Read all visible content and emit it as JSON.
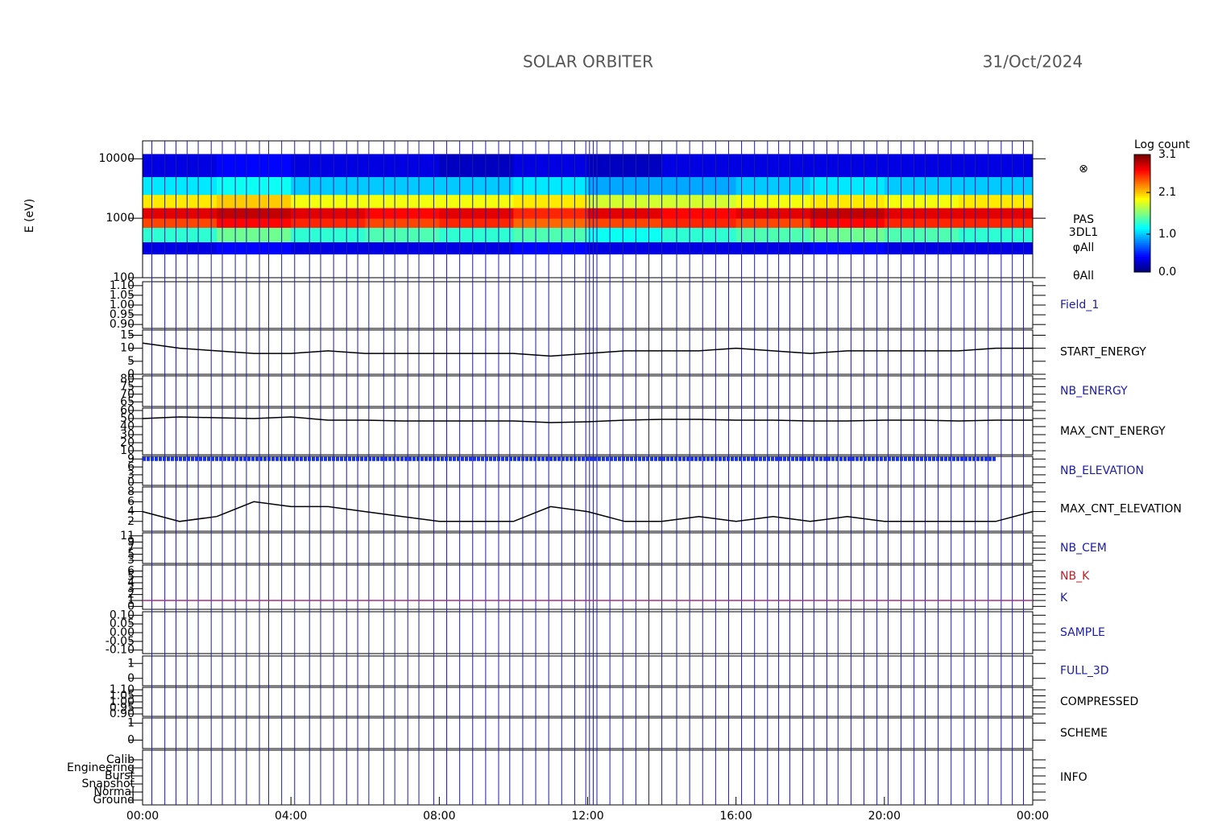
{
  "title": "SOLAR ORBITER",
  "date": "31/Oct/2024",
  "time_axis": {
    "xlim": [
      0,
      24
    ],
    "xticks": [
      {
        "value": 0,
        "label": "00:00"
      },
      {
        "value": 4,
        "label": "04:00"
      },
      {
        "value": 8,
        "label": "08:00"
      },
      {
        "value": 12,
        "label": "12:00"
      },
      {
        "value": 16,
        "label": "16:00"
      },
      {
        "value": 20,
        "label": "20:00"
      },
      {
        "value": 24,
        "label": "00:00"
      }
    ]
  },
  "event_lines": {
    "color": "#1c1ca8",
    "times": [
      0.25,
      0.6,
      0.9,
      1.2,
      1.5,
      1.85,
      2.15,
      2.5,
      2.8,
      3.15,
      3.4,
      3.75,
      4.1,
      4.5,
      4.8,
      5.15,
      5.5,
      5.8,
      6.1,
      6.5,
      6.8,
      7.15,
      7.45,
      7.85,
      8.2,
      8.55,
      8.9,
      9.25,
      9.6,
      9.9,
      10.25,
      10.6,
      10.95,
      11.3,
      11.65,
      11.95,
      12.05,
      12.15,
      12.25,
      12.6,
      12.95,
      13.3,
      13.65,
      14.0,
      14.4,
      14.75,
      15.1,
      15.45,
      15.8,
      16.15,
      16.5,
      16.85,
      17.15,
      17.45,
      17.8,
      18.1,
      18.45,
      18.75,
      19.1,
      19.45,
      19.8,
      20.1,
      20.45,
      20.8,
      21.1,
      21.45,
      21.8,
      22.15,
      22.45,
      22.8,
      23.15,
      23.45,
      23.75
    ]
  },
  "chart_data": [
    {
      "type": "heatmap",
      "ylabel": "E (eV)",
      "log": true,
      "ylim": [
        100,
        20000
      ],
      "yticks": [
        100,
        1000,
        10000
      ],
      "labels": [
        "⊗",
        "PAS",
        "3DL1",
        "φAll",
        "θAll"
      ],
      "label_colors": [
        "#000",
        "#000",
        "#000",
        "#000",
        "#000"
      ],
      "x_edges": [
        0,
        2,
        4,
        6,
        8,
        10,
        12,
        14,
        16,
        18,
        20,
        22,
        24
      ],
      "y_edges": [
        250,
        400,
        700,
        1000,
        1500,
        2500,
        5000,
        12000
      ],
      "values": [
        [
          0.3,
          1.3,
          2.5,
          2.8,
          2.0,
          1.1,
          0.3
        ],
        [
          0.4,
          1.5,
          2.7,
          2.9,
          2.1,
          1.2,
          0.4
        ],
        [
          0.3,
          1.3,
          2.6,
          2.8,
          1.9,
          1.0,
          0.3
        ],
        [
          0.3,
          1.4,
          2.5,
          2.7,
          1.9,
          1.0,
          0.3
        ],
        [
          0.3,
          1.3,
          2.6,
          2.8,
          1.9,
          1.0,
          0.2
        ],
        [
          0.4,
          1.4,
          2.4,
          2.6,
          2.0,
          1.1,
          0.3
        ],
        [
          0.3,
          1.2,
          2.5,
          2.8,
          1.8,
          0.9,
          0.2
        ],
        [
          0.3,
          1.3,
          2.6,
          2.7,
          1.8,
          0.9,
          0.3
        ],
        [
          0.3,
          1.4,
          2.5,
          2.8,
          1.9,
          1.0,
          0.3
        ],
        [
          0.4,
          1.5,
          2.7,
          2.9,
          2.0,
          1.1,
          0.3
        ],
        [
          0.3,
          1.4,
          2.6,
          2.8,
          1.9,
          1.0,
          0.3
        ],
        [
          0.3,
          1.3,
          2.6,
          2.8,
          2.0,
          1.0,
          0.3
        ]
      ],
      "colorbar_title": "Log count",
      "zlim": [
        0,
        3.1
      ],
      "zticks": [
        {
          "value": 0,
          "label": "0.0"
        },
        {
          "value": 1,
          "label": "1.0"
        },
        2.1,
        3.1
      ]
    },
    {
      "type": "line",
      "labels": [
        "Field_1"
      ],
      "label_colors": [
        "#1c1ca8"
      ],
      "ylim": [
        0.88,
        1.12
      ],
      "yticks": [
        {
          "value": 0.9,
          "label": "0.90"
        },
        {
          "value": 0.95,
          "label": "0.95"
        },
        {
          "value": 1,
          "label": "1.00"
        },
        {
          "value": 1.05,
          "label": "1.05"
        },
        {
          "value": 1.1,
          "label": "1.10"
        }
      ]
    },
    {
      "type": "line",
      "labels": [
        "START_ENERGY"
      ],
      "label_colors": [
        "#000"
      ],
      "ylim": [
        0,
        17
      ],
      "yticks": [
        0,
        5,
        10,
        15
      ],
      "x": [
        0,
        1,
        2,
        3,
        4,
        5,
        6,
        7,
        8,
        9,
        10,
        11,
        12,
        13,
        14,
        15,
        16,
        17,
        18,
        19,
        20,
        21,
        22,
        23,
        24
      ],
      "series": [
        {
          "color": "#000",
          "values": [
            12,
            10,
            9,
            8,
            8,
            9,
            8,
            8,
            8,
            8,
            8,
            7,
            8,
            9,
            9,
            9,
            10,
            9,
            8,
            9,
            9,
            9,
            9,
            10,
            10
          ]
        }
      ]
    },
    {
      "type": "line",
      "labels": [
        "NB_ENERGY"
      ],
      "label_colors": [
        "#1c1ca8"
      ],
      "ylim": [
        62,
        82
      ],
      "yticks": [
        65,
        70,
        75,
        80
      ]
    },
    {
      "type": "line",
      "labels": [
        "MAX_CNT_ENERGY"
      ],
      "label_colors": [
        "#000"
      ],
      "ylim": [
        5,
        63
      ],
      "yticks": [
        10,
        20,
        30,
        40,
        50,
        60
      ],
      "x": [
        0,
        1,
        2,
        3,
        4,
        5,
        6,
        7,
        8,
        9,
        10,
        11,
        12,
        13,
        14,
        15,
        16,
        17,
        18,
        19,
        20,
        21,
        22,
        23,
        24
      ],
      "series": [
        {
          "color": "#000",
          "values": [
            50,
            52,
            51,
            50,
            52,
            48,
            48,
            47,
            47,
            47,
            47,
            45,
            46,
            48,
            49,
            49,
            48,
            48,
            47,
            47,
            48,
            48,
            47,
            48,
            48
          ]
        }
      ]
    },
    {
      "type": "line",
      "labels": [
        "NB_ELEVATION"
      ],
      "label_colors": [
        "#1c1ca8"
      ],
      "ylim": [
        -1,
        10
      ],
      "yticks": [
        0,
        3,
        6,
        9
      ],
      "x": [
        0,
        1,
        2,
        3,
        4,
        5,
        6,
        7,
        8,
        9,
        10,
        11,
        12,
        13,
        14,
        15,
        16,
        17,
        18,
        19,
        20,
        21,
        22,
        23,
        24
      ],
      "series": [
        {
          "color": "#1530e8",
          "line_width": 5,
          "values": [
            9,
            9,
            9,
            9,
            9,
            9,
            9,
            9,
            9,
            9,
            9,
            9,
            9,
            9,
            9,
            9,
            9,
            9,
            9,
            9,
            9,
            9,
            9,
            9,
            null
          ]
        }
      ]
    },
    {
      "type": "line",
      "labels": [
        "MAX_CNT_ELEVATION"
      ],
      "label_colors": [
        "#000"
      ],
      "ylim": [
        0,
        9
      ],
      "yticks": [
        2,
        4,
        6,
        8
      ],
      "x": [
        0,
        1,
        2,
        3,
        4,
        5,
        6,
        7,
        8,
        9,
        10,
        11,
        12,
        13,
        14,
        15,
        16,
        17,
        18,
        19,
        20,
        21,
        22,
        23,
        24
      ],
      "series": [
        {
          "color": "#000",
          "values": [
            4,
            2,
            3,
            6,
            5,
            5,
            4,
            3,
            2,
            2,
            2,
            5,
            4,
            2,
            2,
            3,
            2,
            3,
            2,
            3,
            2,
            2,
            2,
            2,
            4
          ]
        }
      ]
    },
    {
      "type": "line",
      "labels": [
        "NB_CEM"
      ],
      "label_colors": [
        "#1c1ca8"
      ],
      "ylim": [
        2,
        12
      ],
      "yticks": [
        3,
        5,
        7,
        9,
        11
      ]
    },
    {
      "type": "line",
      "labels": [
        "NB_K",
        "K"
      ],
      "label_colors": [
        "#c0202a",
        "#1c1ca8"
      ],
      "ylim": [
        -0.5,
        7
      ],
      "yticks": [
        0,
        1,
        2,
        3,
        4,
        5,
        6
      ],
      "x": [
        0,
        24
      ],
      "series": [
        {
          "color": "#a0308a",
          "values": [
            1,
            1
          ]
        }
      ]
    },
    {
      "type": "line",
      "labels": [
        "SAMPLE"
      ],
      "label_colors": [
        "#1c1ca8"
      ],
      "ylim": [
        -0.12,
        0.12
      ],
      "yticks": [
        {
          "value": -0.1,
          "label": "-0.10"
        },
        {
          "value": -0.05,
          "label": "-0.05"
        },
        {
          "value": 0,
          "label": "0.00"
        },
        {
          "value": 0.05,
          "label": "0.05"
        },
        {
          "value": 0.1,
          "label": "0.10"
        }
      ]
    },
    {
      "type": "line",
      "labels": [
        "FULL_3D"
      ],
      "label_colors": [
        "#1c1ca8"
      ],
      "ylim": [
        -0.5,
        1.5
      ],
      "yticks": [
        0,
        1
      ]
    },
    {
      "type": "line",
      "labels": [
        "COMPRESSED"
      ],
      "label_colors": [
        "#000"
      ],
      "ylim": [
        0.88,
        1.12
      ],
      "yticks": [
        {
          "value": 0.9,
          "label": "0.90"
        },
        {
          "value": 0.95,
          "label": "0.95"
        },
        {
          "value": 1,
          "label": "1.00"
        },
        {
          "value": 1.05,
          "label": "1.05"
        },
        {
          "value": 1.1,
          "label": "1.10"
        }
      ]
    },
    {
      "type": "line",
      "labels": [
        "SCHEME"
      ],
      "label_colors": [
        "#000"
      ],
      "ylim": [
        -0.5,
        1.3
      ],
      "yticks": [
        0,
        1
      ]
    },
    {
      "type": "category_axis",
      "labels": [
        "INFO"
      ],
      "label_colors": [
        "#000"
      ],
      "categories": [
        "Calib",
        "Engineering",
        "Burst",
        "Snapshot",
        "Normal",
        "Ground"
      ]
    }
  ]
}
